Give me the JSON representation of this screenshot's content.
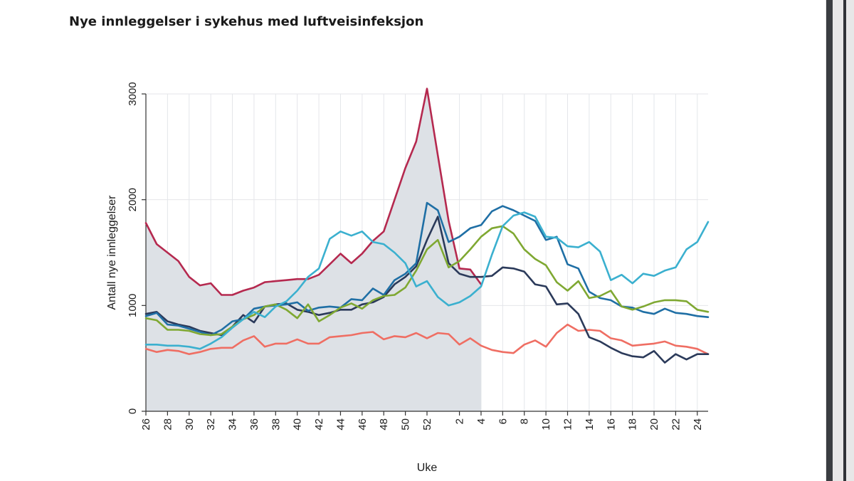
{
  "colors": {
    "background": "#ffffff",
    "shade": "#dde1e6",
    "grid": "#e4e6ea",
    "axis": "#333333",
    "scrollbar": "#3a3d41"
  },
  "chart_data": {
    "type": "line",
    "title": "Nye innleggelser i sykehus med luftveisinfeksjon",
    "xlabel": "Uke",
    "ylabel": "Antall nye innleggelser",
    "ylim": [
      0,
      3000
    ],
    "yticks": [
      0,
      1000,
      2000,
      3000
    ],
    "grid": true,
    "legend": "none",
    "x": [
      26,
      27,
      28,
      29,
      30,
      31,
      32,
      33,
      34,
      35,
      36,
      37,
      38,
      39,
      40,
      41,
      42,
      43,
      44,
      45,
      46,
      47,
      48,
      49,
      50,
      51,
      52,
      53,
      1,
      2,
      3,
      4,
      5,
      6,
      7,
      8,
      9,
      10,
      11,
      12,
      13,
      14,
      15,
      16,
      17,
      18,
      19,
      20,
      21,
      22,
      23,
      24,
      25
    ],
    "x_tick_labels": [
      "26",
      "28",
      "30",
      "32",
      "34",
      "36",
      "38",
      "40",
      "42",
      "44",
      "46",
      "48",
      "50",
      "52",
      "2",
      "4",
      "6",
      "8",
      "10",
      "12",
      "14",
      "16",
      "18",
      "20",
      "22",
      "24"
    ],
    "shaded_area": {
      "values": [
        1780,
        1580,
        1500,
        1420,
        1270,
        1190,
        1210,
        1100,
        1100,
        1140,
        1170,
        1220,
        1230,
        1240,
        1250,
        1250,
        1290,
        1390,
        1490,
        1400,
        1490,
        1610,
        1700,
        2000,
        2300,
        2550,
        3050,
        2420,
        1800,
        1350,
        1340,
        1200,
        null,
        null,
        null,
        null,
        null,
        null,
        null,
        null,
        null,
        null,
        null,
        null,
        null,
        null,
        null,
        null,
        null,
        null,
        null,
        null,
        null
      ]
    },
    "series": [
      {
        "color": "#b5294f",
        "values": [
          1780,
          1580,
          1500,
          1420,
          1270,
          1190,
          1210,
          1100,
          1100,
          1140,
          1170,
          1220,
          1230,
          1240,
          1250,
          1250,
          1290,
          1390,
          1490,
          1400,
          1490,
          1610,
          1700,
          2000,
          2300,
          2550,
          3050,
          2420,
          1800,
          1350,
          1340,
          1200,
          null,
          null,
          null,
          null,
          null,
          null,
          null,
          null,
          null,
          null,
          null,
          null,
          null,
          null,
          null,
          null,
          null,
          null,
          null,
          null,
          null
        ]
      },
      {
        "color": "#ef6e63",
        "values": [
          590,
          560,
          580,
          570,
          540,
          560,
          590,
          600,
          600,
          670,
          710,
          610,
          640,
          640,
          680,
          640,
          640,
          700,
          710,
          720,
          740,
          750,
          680,
          710,
          700,
          740,
          690,
          740,
          730,
          630,
          690,
          620,
          580,
          560,
          550,
          630,
          670,
          610,
          740,
          820,
          760,
          770,
          760,
          690,
          670,
          620,
          630,
          640,
          660,
          620,
          610,
          590,
          540
        ]
      },
      {
        "color": "#2b3a5a",
        "values": [
          920,
          940,
          850,
          820,
          800,
          760,
          740,
          720,
          800,
          910,
          840,
          990,
          1010,
          1020,
          960,
          940,
          910,
          930,
          960,
          960,
          1010,
          1030,
          1080,
          1200,
          1270,
          1370,
          1620,
          1840,
          1400,
          1300,
          1270,
          1270,
          1280,
          1360,
          1350,
          1320,
          1200,
          1180,
          1010,
          1020,
          920,
          700,
          660,
          600,
          550,
          520,
          510,
          570,
          460,
          540,
          490,
          540,
          540
        ]
      },
      {
        "color": "#1f6fa5",
        "values": [
          900,
          930,
          820,
          810,
          780,
          750,
          720,
          770,
          850,
          870,
          970,
          990,
          1000,
          1010,
          1030,
          950,
          980,
          990,
          980,
          1060,
          1050,
          1160,
          1100,
          1240,
          1300,
          1400,
          1970,
          1900,
          1600,
          1650,
          1730,
          1760,
          1890,
          1940,
          1900,
          1850,
          1800,
          1620,
          1650,
          1390,
          1350,
          1130,
          1070,
          1050,
          990,
          980,
          940,
          920,
          970,
          930,
          920,
          900,
          890
        ]
      },
      {
        "color": "#7fa832",
        "values": [
          880,
          860,
          770,
          770,
          760,
          730,
          720,
          730,
          800,
          870,
          910,
          990,
          1010,
          960,
          880,
          1010,
          850,
          910,
          980,
          1020,
          970,
          1050,
          1090,
          1100,
          1170,
          1330,
          1530,
          1620,
          1360,
          1420,
          1530,
          1650,
          1730,
          1750,
          1680,
          1530,
          1440,
          1380,
          1220,
          1140,
          1230,
          1070,
          1090,
          1140,
          990,
          960,
          990,
          1030,
          1050,
          1050,
          1040,
          960,
          940
        ]
      },
      {
        "color": "#3bb0cf",
        "values": [
          630,
          630,
          620,
          620,
          610,
          590,
          640,
          700,
          790,
          870,
          940,
          890,
          990,
          1040,
          1140,
          1270,
          1350,
          1630,
          1700,
          1660,
          1700,
          1600,
          1580,
          1500,
          1400,
          1180,
          1230,
          1080,
          1000,
          1030,
          1090,
          1180,
          1480,
          1750,
          1850,
          1880,
          1840,
          1650,
          1640,
          1560,
          1550,
          1600,
          1510,
          1240,
          1290,
          1210,
          1300,
          1280,
          1330,
          1360,
          1530,
          1600,
          1790
        ]
      }
    ]
  }
}
